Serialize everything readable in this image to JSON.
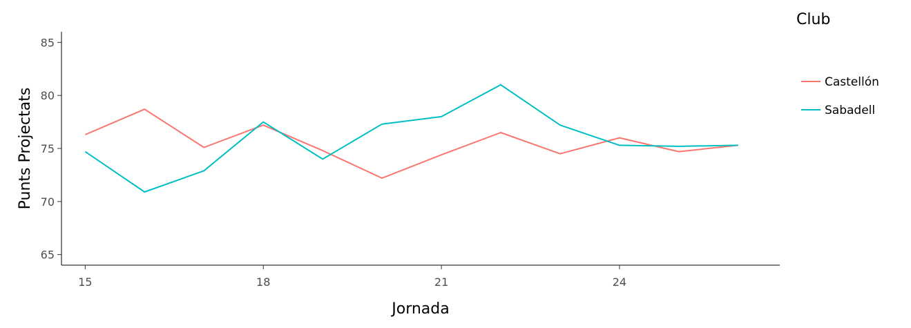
{
  "chart_data": {
    "type": "line",
    "xlabel": "Jornada",
    "ylabel": "Punts Projectats",
    "xlim": [
      14.6,
      26.7
    ],
    "ylim": [
      64,
      86
    ],
    "x_ticks": [
      15,
      18,
      21,
      24
    ],
    "y_ticks": [
      65,
      70,
      75,
      80,
      85
    ],
    "x": [
      15,
      16,
      17,
      18,
      19,
      20,
      21,
      22,
      23,
      24,
      25,
      26
    ],
    "series": [
      {
        "name": "Castellón",
        "color": "#f8766d",
        "values": [
          76.3,
          78.7,
          75.1,
          77.2,
          74.8,
          72.2,
          74.4,
          76.5,
          74.5,
          76.0,
          74.7,
          75.3
        ]
      },
      {
        "name": "Sabadell",
        "color": "#00bfc4",
        "values": [
          74.7,
          70.9,
          72.9,
          77.5,
          74.0,
          77.3,
          78.0,
          81.0,
          77.2,
          75.3,
          75.2,
          75.3
        ]
      }
    ],
    "legend": {
      "title": "Club",
      "position": "right"
    },
    "grid": false
  }
}
